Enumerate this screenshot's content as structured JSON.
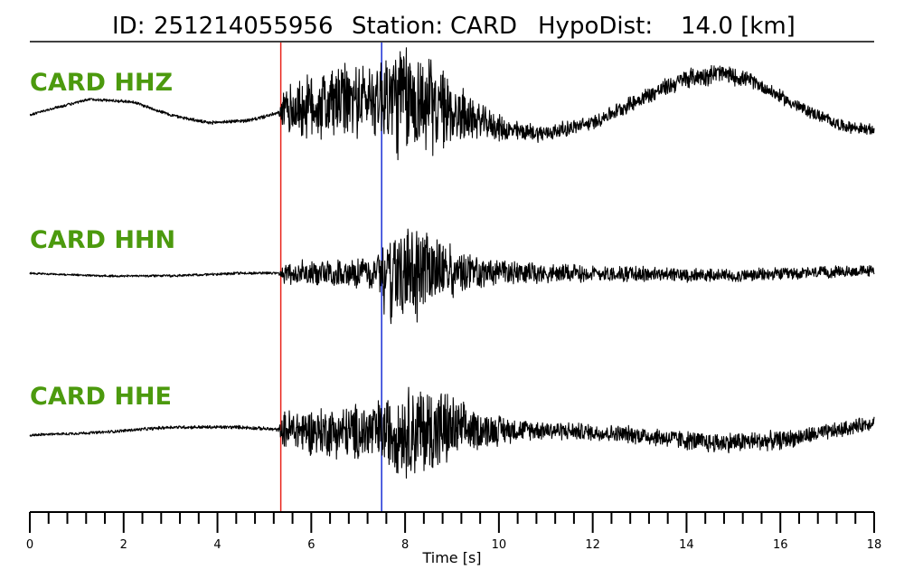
{
  "header": {
    "id_label": "ID:",
    "id_value": "251214055956",
    "station_label": "Station:",
    "station_value": "CARD",
    "hypodist_label": "HypoDist:",
    "hypodist_value": "14.0 [km]"
  },
  "chart_data": {
    "type": "line",
    "xlabel": "Time [s]",
    "xlim": [
      0,
      18
    ],
    "x_ticks": [
      0,
      2,
      4,
      6,
      8,
      10,
      12,
      14,
      16,
      18
    ],
    "x_tick_labels": [
      "0",
      "2",
      "4",
      "6",
      "8",
      "10",
      "12",
      "14",
      "16",
      "18"
    ],
    "minor_tick_step": 0.4,
    "grid": false,
    "label_color": "#4c9a0e",
    "trace_color": "#000000",
    "picks": [
      {
        "phase": "P",
        "time": 5.35,
        "color": "#e8231a"
      },
      {
        "phase": "S",
        "time": 7.5,
        "color": "#1a2fd6"
      }
    ],
    "series": [
      {
        "name": "CARD HHZ",
        "baseline": [
          [
            0,
            0.05
          ],
          [
            0.6,
            0.2
          ],
          [
            1.3,
            0.35
          ],
          [
            2.2,
            0.3
          ],
          [
            3.0,
            0.05
          ],
          [
            3.8,
            -0.1
          ],
          [
            4.7,
            -0.05
          ],
          [
            5.35,
            0.1
          ],
          [
            6.2,
            0.25
          ],
          [
            7.0,
            0.35
          ],
          [
            7.5,
            0.4
          ],
          [
            8.3,
            0.3
          ],
          [
            9.2,
            0.05
          ],
          [
            10.2,
            -0.25
          ],
          [
            11.0,
            -0.3
          ],
          [
            12.0,
            -0.1
          ],
          [
            13.0,
            0.35
          ],
          [
            14.0,
            0.75
          ],
          [
            14.7,
            0.85
          ],
          [
            15.4,
            0.7
          ],
          [
            16.4,
            0.2
          ],
          [
            17.3,
            -0.15
          ],
          [
            18.0,
            -0.25
          ]
        ],
        "noise_envelope": [
          [
            0,
            0.03
          ],
          [
            5.3,
            0.04
          ],
          [
            5.45,
            0.55
          ],
          [
            6.4,
            0.85
          ],
          [
            7.3,
            0.75
          ],
          [
            7.8,
            1.3
          ],
          [
            8.4,
            1.1
          ],
          [
            8.9,
            0.8
          ],
          [
            9.6,
            0.35
          ],
          [
            10.5,
            0.2
          ],
          [
            12.0,
            0.15
          ],
          [
            14.5,
            0.22
          ],
          [
            15.5,
            0.15
          ],
          [
            18.0,
            0.12
          ]
        ]
      },
      {
        "name": "CARD HHN",
        "baseline": [
          [
            0,
            0.0
          ],
          [
            1.5,
            -0.05
          ],
          [
            3.0,
            -0.05
          ],
          [
            4.5,
            0.0
          ],
          [
            5.35,
            0.0
          ],
          [
            9.0,
            0.0
          ],
          [
            12.0,
            0.0
          ],
          [
            15.0,
            -0.05
          ],
          [
            18.0,
            0.05
          ]
        ],
        "noise_envelope": [
          [
            0,
            0.02
          ],
          [
            5.3,
            0.03
          ],
          [
            5.45,
            0.25
          ],
          [
            7.4,
            0.35
          ],
          [
            7.6,
            1.05
          ],
          [
            8.2,
            1.0
          ],
          [
            8.8,
            0.65
          ],
          [
            9.6,
            0.3
          ],
          [
            11.0,
            0.2
          ],
          [
            14.0,
            0.15
          ],
          [
            18.0,
            0.12
          ]
        ]
      },
      {
        "name": "CARD HHE",
        "baseline": [
          [
            0,
            -0.05
          ],
          [
            1.5,
            0.0
          ],
          [
            3.0,
            0.1
          ],
          [
            4.5,
            0.1
          ],
          [
            5.35,
            0.05
          ],
          [
            7.0,
            0.0
          ],
          [
            9.0,
            0.05
          ],
          [
            11.0,
            0.05
          ],
          [
            13.0,
            -0.05
          ],
          [
            14.5,
            -0.2
          ],
          [
            16.0,
            -0.15
          ],
          [
            17.3,
            0.05
          ],
          [
            18.0,
            0.2
          ]
        ],
        "noise_envelope": [
          [
            0,
            0.03
          ],
          [
            5.3,
            0.04
          ],
          [
            5.45,
            0.45
          ],
          [
            6.6,
            0.55
          ],
          [
            7.5,
            0.7
          ],
          [
            8.1,
            1.0
          ],
          [
            8.7,
            0.95
          ],
          [
            9.4,
            0.45
          ],
          [
            10.5,
            0.22
          ],
          [
            12.0,
            0.18
          ],
          [
            15.0,
            0.22
          ],
          [
            18.0,
            0.15
          ]
        ]
      }
    ]
  }
}
